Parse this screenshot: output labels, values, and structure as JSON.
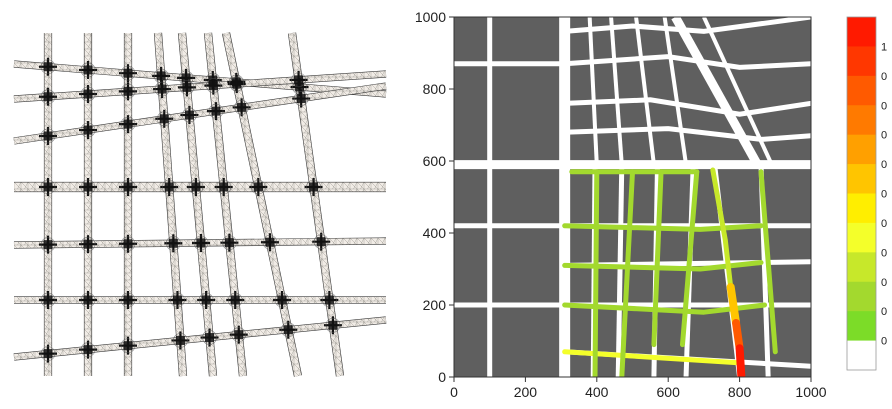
{
  "chart_data": [
    {
      "type": "other",
      "description_panel": "mesh",
      "grid": false,
      "colors": {
        "line": "#222222",
        "mesh_fill": "#f1ece6",
        "mesh_dense": "#5a5a5a"
      },
      "vertical_streets": [
        {
          "bottom": 48,
          "top": 48
        },
        {
          "bottom": 88,
          "top": 88
        },
        {
          "bottom": 128,
          "top": 128
        },
        {
          "bottom": 183,
          "top": 158
        },
        {
          "bottom": 213,
          "top": 182
        },
        {
          "bottom": 243,
          "top": 208
        },
        {
          "bottom": 298,
          "top": 226
        },
        {
          "bottom": 340,
          "top": 292
        }
      ],
      "horizontal_streets": [
        {
          "left": 64,
          "right": 94
        },
        {
          "left": 99,
          "right": 74
        },
        {
          "left": 141,
          "right": 86
        },
        {
          "left": 187,
          "right": 187
        },
        {
          "left": 245,
          "right": 241
        },
        {
          "left": 300,
          "right": 300
        },
        {
          "left": 357,
          "right": 320
        }
      ]
    },
    {
      "type": "heatmap",
      "xlim": [
        0,
        1000
      ],
      "ylim": [
        0,
        1000
      ],
      "x_ticks": [
        "0",
        "200",
        "400",
        "600",
        "800",
        "1000"
      ],
      "y_ticks": [
        "0",
        "200",
        "400",
        "600",
        "800",
        "1000"
      ],
      "grid": false,
      "colors": {
        "block": "#5f5f5f",
        "street": "#ffffff"
      },
      "flooded_streets": [
        {
          "points": [
            [
              330,
              570
            ],
            [
              680,
              570
            ]
          ],
          "value": 0.1
        },
        {
          "points": [
            [
              310,
              420
            ],
            [
              690,
              410
            ],
            [
              860,
              420
            ]
          ],
          "value": 0.1
        },
        {
          "points": [
            [
              310,
              310
            ],
            [
              690,
              300
            ],
            [
              860,
              318
            ]
          ],
          "value": 0.1
        },
        {
          "points": [
            [
              310,
              200
            ],
            [
              700,
              180
            ],
            [
              870,
              200
            ]
          ],
          "value": 0.1
        },
        {
          "points": [
            [
              310,
              70
            ],
            [
              790,
              40
            ]
          ],
          "value": 0.3
        },
        {
          "points": [
            [
              400,
              570
            ],
            [
              395,
              0
            ]
          ],
          "value": 0.1
        },
        {
          "points": [
            [
              500,
              570
            ],
            [
              470,
              0
            ]
          ],
          "value": 0.1
        },
        {
          "points": [
            [
              580,
              570
            ],
            [
              560,
              90
            ]
          ],
          "value": 0.1
        },
        {
          "points": [
            [
              680,
              570
            ],
            [
              640,
              90
            ]
          ],
          "value": 0.1
        },
        {
          "points": [
            [
              860,
              570
            ],
            [
              900,
              70
            ]
          ],
          "value": 0.1
        },
        {
          "points": [
            [
              725,
              575
            ],
            [
              760,
              380
            ],
            [
              775,
              250
            ]
          ],
          "value": 0.15
        },
        {
          "points": [
            [
              775,
              250
            ],
            [
              790,
              150
            ]
          ],
          "value": 0.5
        },
        {
          "points": [
            [
              790,
              150
            ],
            [
              800,
              80
            ]
          ],
          "value": 0.8
        },
        {
          "points": [
            [
              800,
              80
            ],
            [
              805,
              0
            ]
          ],
          "value": 1.0
        }
      ],
      "colorbar": {
        "colors": [
          "#ff1a00",
          "#ff3700",
          "#ff5a00",
          "#ff7a00",
          "#ffa000",
          "#ffc500",
          "#ffee00",
          "#f4ff2a",
          "#c7e82a",
          "#a3d92e",
          "#7cdc28",
          "#ffffff"
        ],
        "labels": [
          "1",
          "0",
          "0",
          "0",
          "0",
          "0",
          "0",
          "0",
          "0",
          "0",
          "0"
        ]
      }
    }
  ]
}
